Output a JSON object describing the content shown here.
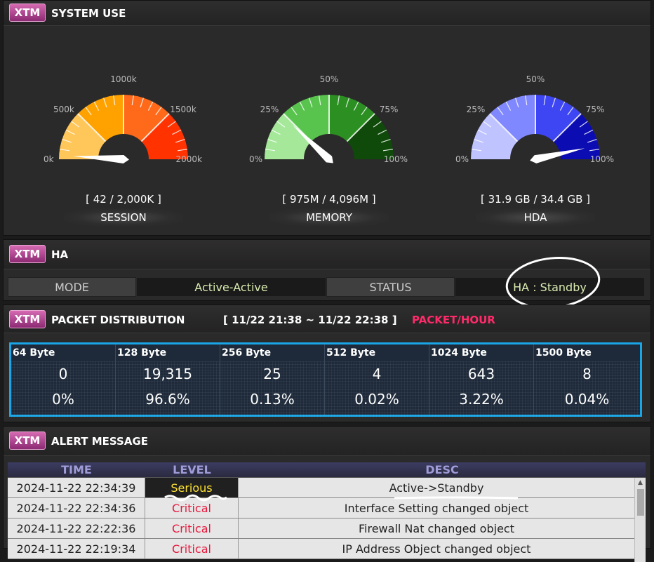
{
  "system_use": {
    "badge": "XTM",
    "title": "SYSTEM USE",
    "gauges": [
      {
        "name": "session",
        "label": "SESSION",
        "value_text": "[ 42 / 2,000K ]",
        "ticks": [
          "0k",
          "500k",
          "1000k",
          "1500k",
          "2000k"
        ],
        "colors": [
          "#ffc659",
          "#ffa200",
          "#ff6a1a",
          "#ff3200"
        ],
        "needle_fraction": 0.02
      },
      {
        "name": "memory",
        "label": "MEMORY",
        "value_text": "[ 975M / 4,096M ]",
        "ticks": [
          "0%",
          "25%",
          "50%",
          "75%",
          "100%"
        ],
        "colors": [
          "#a5e89a",
          "#58c44e",
          "#2b8f22",
          "#0f4a0a"
        ],
        "needle_fraction": 0.24
      },
      {
        "name": "hda",
        "label": "HDA",
        "value_text": "[ 31.9 GB / 34.4 GB ]",
        "ticks": [
          "0%",
          "25%",
          "50%",
          "75%",
          "100%"
        ],
        "colors": [
          "#bfc3ff",
          "#8088ff",
          "#3d46f2",
          "#0c0cb3"
        ],
        "needle_fraction": 0.93
      }
    ]
  },
  "ha": {
    "badge": "XTM",
    "title": "HA",
    "mode_label": "MODE",
    "mode_value": "Active-Active",
    "status_label": "STATUS",
    "status_value": "HA : Standby"
  },
  "packet": {
    "badge": "XTM",
    "title": "PACKET DISTRIBUTION",
    "range": "[ 11/22 21:38 ~ 11/22 22:38 ]",
    "unit": "PACKET/HOUR",
    "unit_color": "#ff2a6a",
    "columns": [
      {
        "size": "64 Byte",
        "count": "0",
        "pct": "0%"
      },
      {
        "size": "128 Byte",
        "count": "19,315",
        "pct": "96.6%"
      },
      {
        "size": "256 Byte",
        "count": "25",
        "pct": "0.13%"
      },
      {
        "size": "512 Byte",
        "count": "4",
        "pct": "0.02%"
      },
      {
        "size": "1024 Byte",
        "count": "643",
        "pct": "3.22%"
      },
      {
        "size": "1500 Byte",
        "count": "8",
        "pct": "0.04%"
      }
    ]
  },
  "alert": {
    "badge": "XTM",
    "title": "ALERT MESSAGE",
    "headers": {
      "time": "TIME",
      "level": "LEVEL",
      "desc": "DESC"
    },
    "rows": [
      {
        "time": "2024-11-22 22:34:39",
        "level": "Serious",
        "level_color": "#ffe233",
        "desc": "Active->Standby"
      },
      {
        "time": "2024-11-22 22:34:36",
        "level": "Critical",
        "level_color": "#e8173c",
        "desc": "Interface Setting changed object"
      },
      {
        "time": "2024-11-22 22:22:36",
        "level": "Critical",
        "level_color": "#e8173c",
        "desc": "Firewall Nat changed object"
      },
      {
        "time": "2024-11-22 22:19:34",
        "level": "Critical",
        "level_color": "#e8173c",
        "desc": "IP Address Object changed object"
      }
    ]
  }
}
